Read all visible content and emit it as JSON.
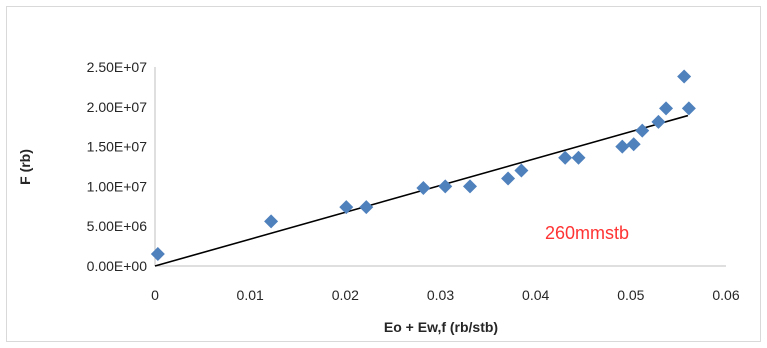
{
  "chart_data": {
    "type": "scatter",
    "title": "",
    "xlabel": "Eo + Ew,f (rb/stb)",
    "ylabel": "F (rb)",
    "xlim": [
      0,
      0.06
    ],
    "ylim": [
      0,
      25000000
    ],
    "x_ticks": [
      "0",
      "0.01",
      "0.02",
      "0.03",
      "0.04",
      "0.05",
      "0.06"
    ],
    "y_ticks": [
      "0.00E+00",
      "5.00E+06",
      "1.00E+07",
      "1.50E+07",
      "2.00E+07",
      "2.50E+07"
    ],
    "grid": false,
    "legend": "none",
    "marker": "diamond",
    "series": [
      {
        "x": [
          0.0003,
          0.0122,
          0.0201,
          0.0222,
          0.0282,
          0.0305,
          0.0331,
          0.0371,
          0.0385,
          0.0431,
          0.0445,
          0.0491,
          0.0503,
          0.0512,
          0.0529,
          0.0537,
          0.0556,
          0.0561
        ],
        "y": [
          1500000,
          5600000,
          7400000,
          7400000,
          9800000,
          10000000,
          10000000,
          11000000,
          12000000,
          13600000,
          13600000,
          15000000,
          15300000,
          17000000,
          18100000,
          19800000,
          23800000,
          19800000
        ]
      }
    ],
    "trendline": {
      "x": [
        0,
        0.056
      ],
      "y": [
        0,
        18900000
      ]
    },
    "annotation": {
      "text": "260mmstb"
    },
    "colors": {
      "marker": "#4f81bd",
      "trendline": "#000000",
      "annotation": "#ff3333",
      "axis": "#bfbfbf"
    }
  }
}
